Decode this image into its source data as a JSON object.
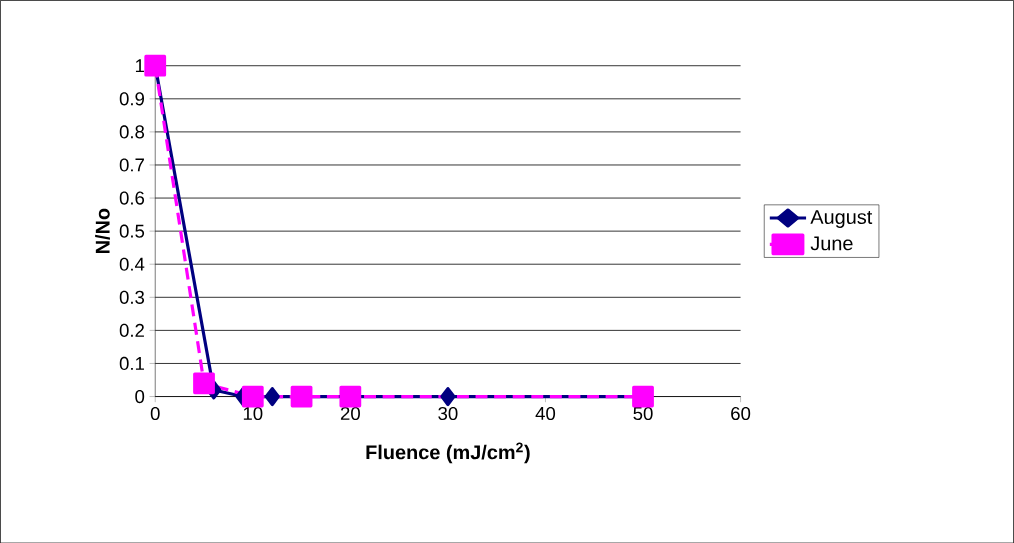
{
  "chart_data": {
    "type": "line",
    "xlabel": "Fluence (mJ/cm$^{2}$)",
    "ylabel": "N/No",
    "xlim": [
      0,
      60
    ],
    "ylim": [
      0,
      1
    ],
    "xticks": [
      0,
      10,
      20,
      30,
      40,
      50,
      60
    ],
    "yticks": [
      0,
      0.1,
      0.2,
      0.3,
      0.4,
      0.5,
      0.6,
      0.7,
      0.8,
      0.9,
      1
    ],
    "grid": "y",
    "legend": "right",
    "series": [
      {
        "name": "August",
        "color": "#000080",
        "x": [
          0,
          6,
          9,
          12,
          30,
          50
        ],
        "values": [
          1,
          0.02,
          0,
          0,
          0,
          0
        ],
        "marker": "diamond",
        "line_style": "solid"
      },
      {
        "name": "June",
        "color": "#ff00ff",
        "x": [
          0,
          5,
          10,
          15,
          20,
          50
        ],
        "values": [
          1,
          0.04,
          0,
          0,
          0,
          0
        ],
        "marker": "square",
        "line_style": "dashed"
      }
    ]
  }
}
